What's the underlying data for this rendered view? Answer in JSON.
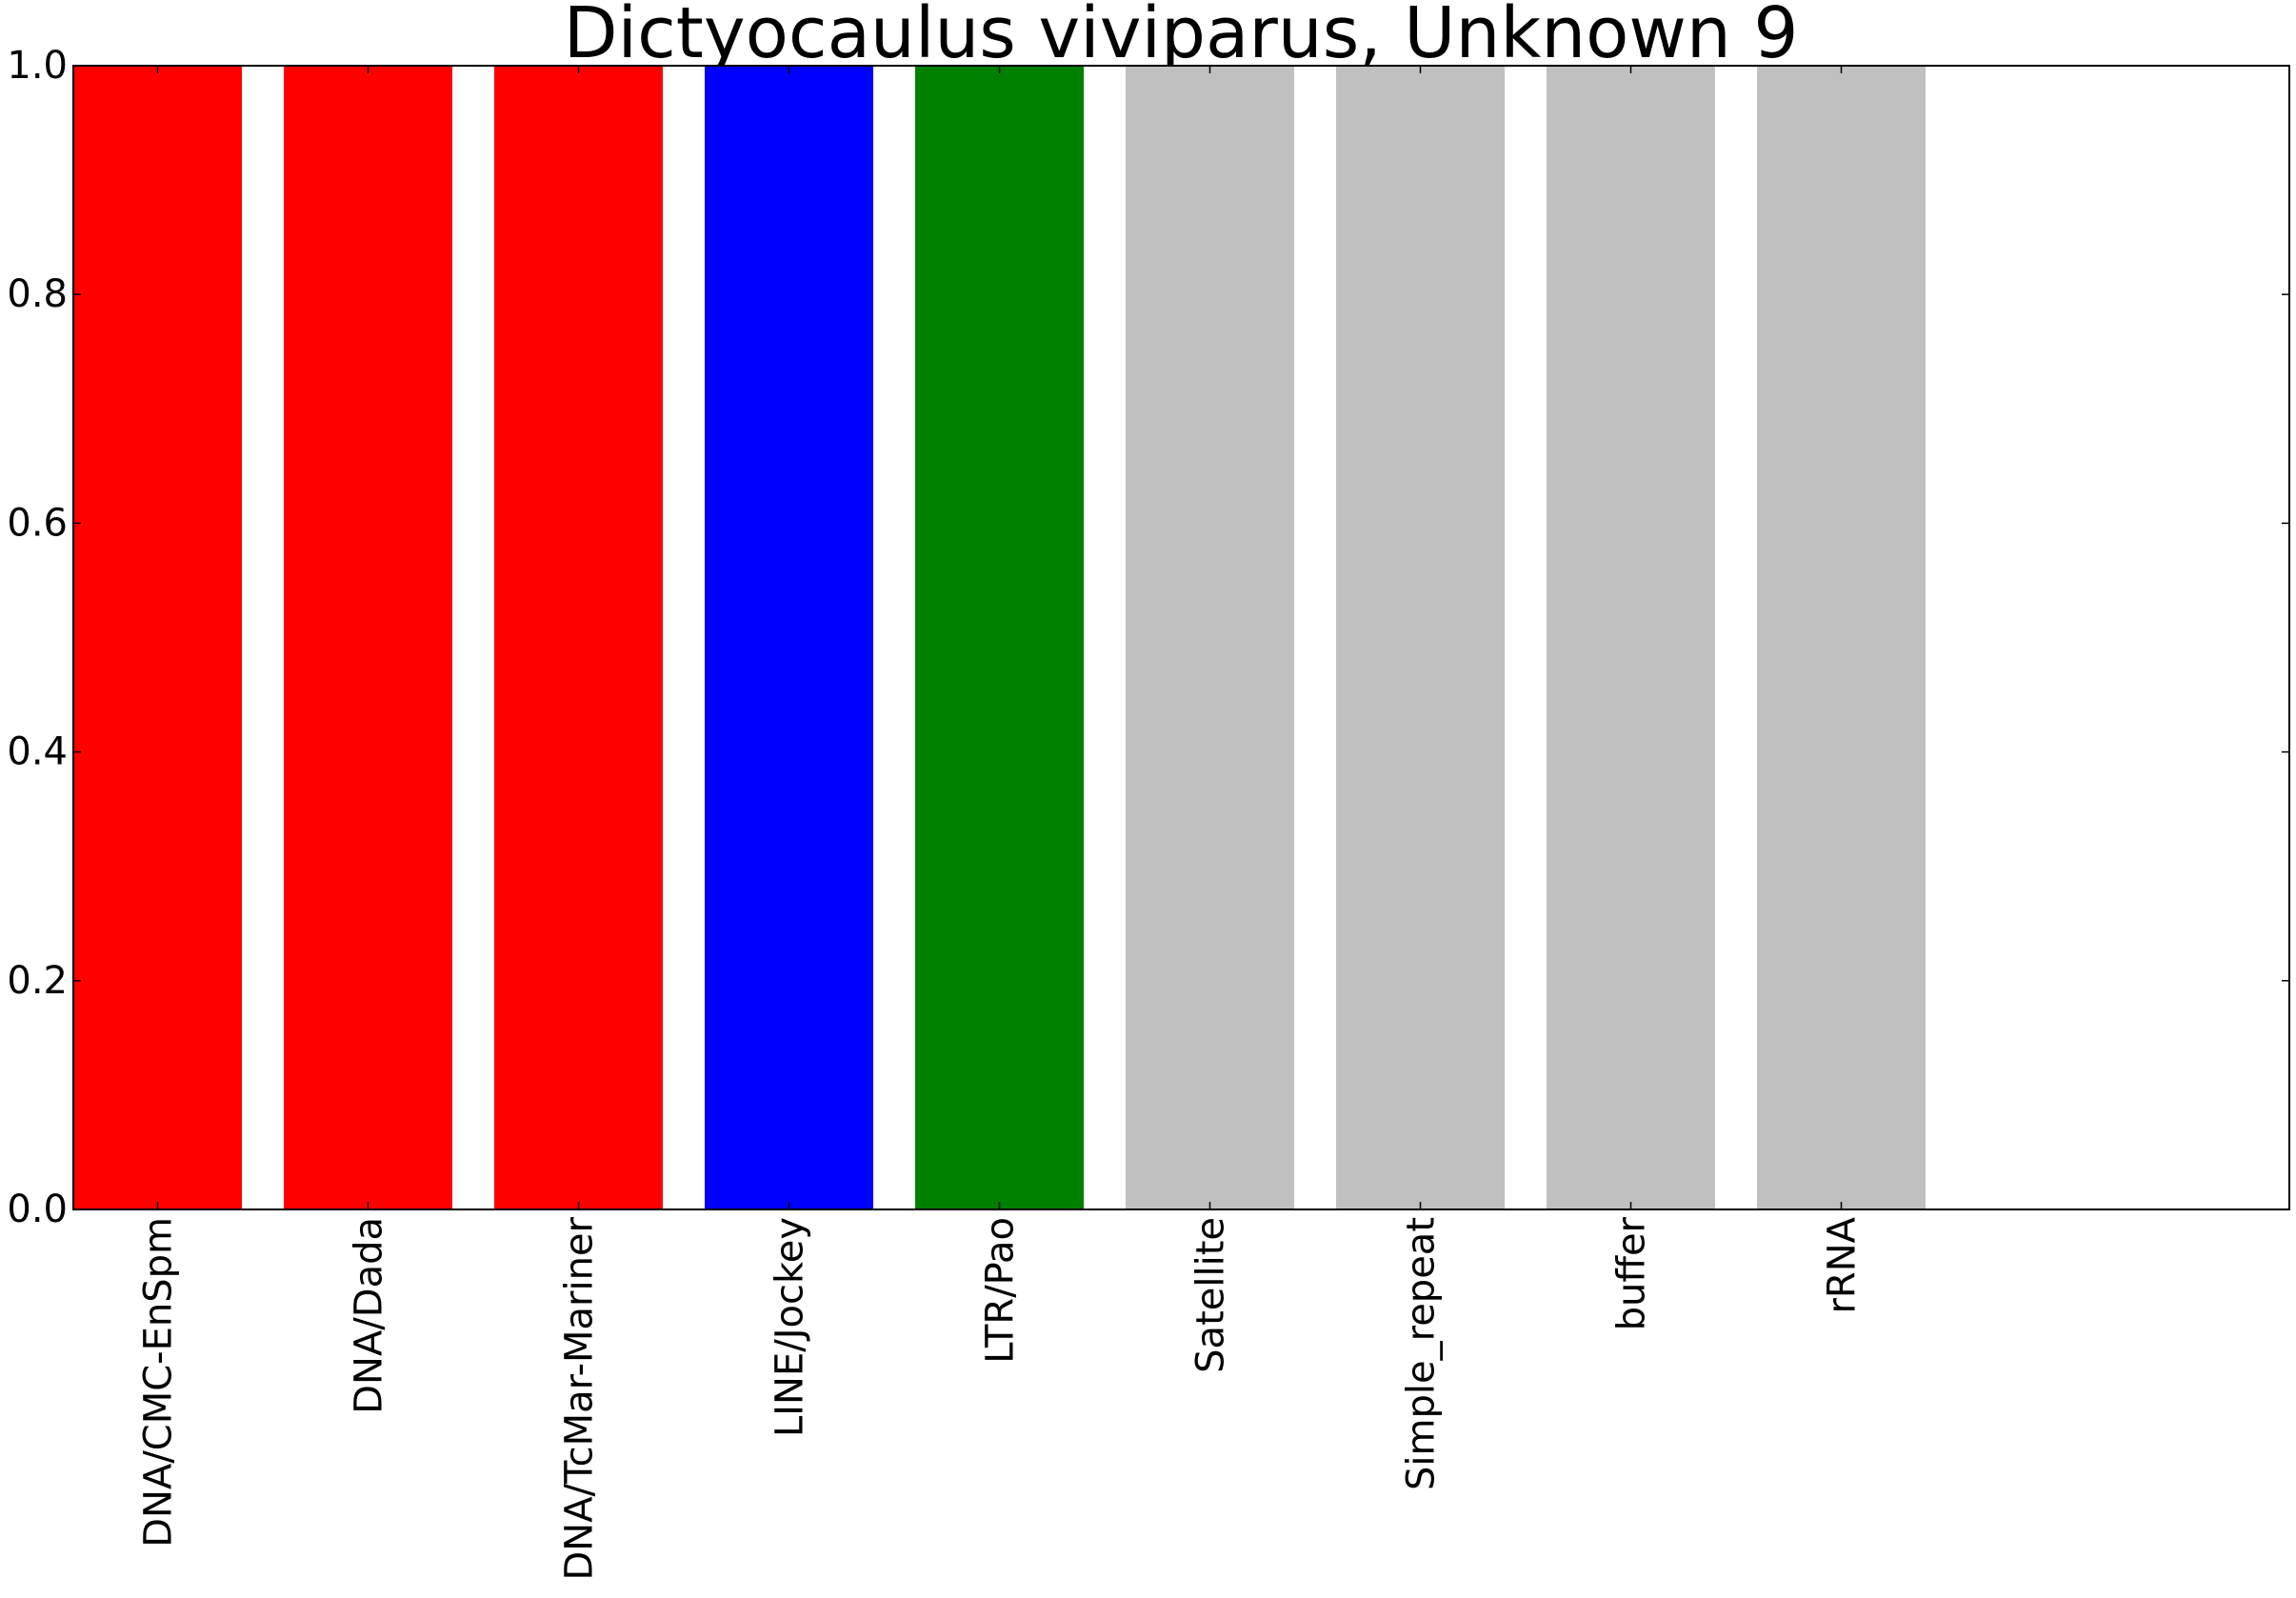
{
  "chart_data": {
    "type": "bar",
    "title": "Dictyocaulus viviparus, Unknown 9",
    "xlabel": "",
    "ylabel": "",
    "categories": [
      "DNA/CMC-EnSpm",
      "DNA/Dada",
      "DNA/TcMar-Mariner",
      "LINE/Jockey",
      "LTR/Pao",
      "Satellite",
      "Simple_repeat",
      "buffer",
      "rRNA"
    ],
    "values": [
      1.0,
      1.0,
      1.0,
      1.0,
      1.0,
      1.0,
      1.0,
      1.0,
      1.0
    ],
    "bar_colors": [
      "#ff0000",
      "#ff0000",
      "#ff0000",
      "#0000ff",
      "#008000",
      "#c0c0c0",
      "#c0c0c0",
      "#c0c0c0",
      "#c0c0c0"
    ],
    "ylim": [
      0.0,
      1.0
    ],
    "yticks": [
      "0.0",
      "0.2",
      "0.4",
      "0.6",
      "0.8",
      "1.0"
    ],
    "grid": false,
    "legend": "none"
  }
}
